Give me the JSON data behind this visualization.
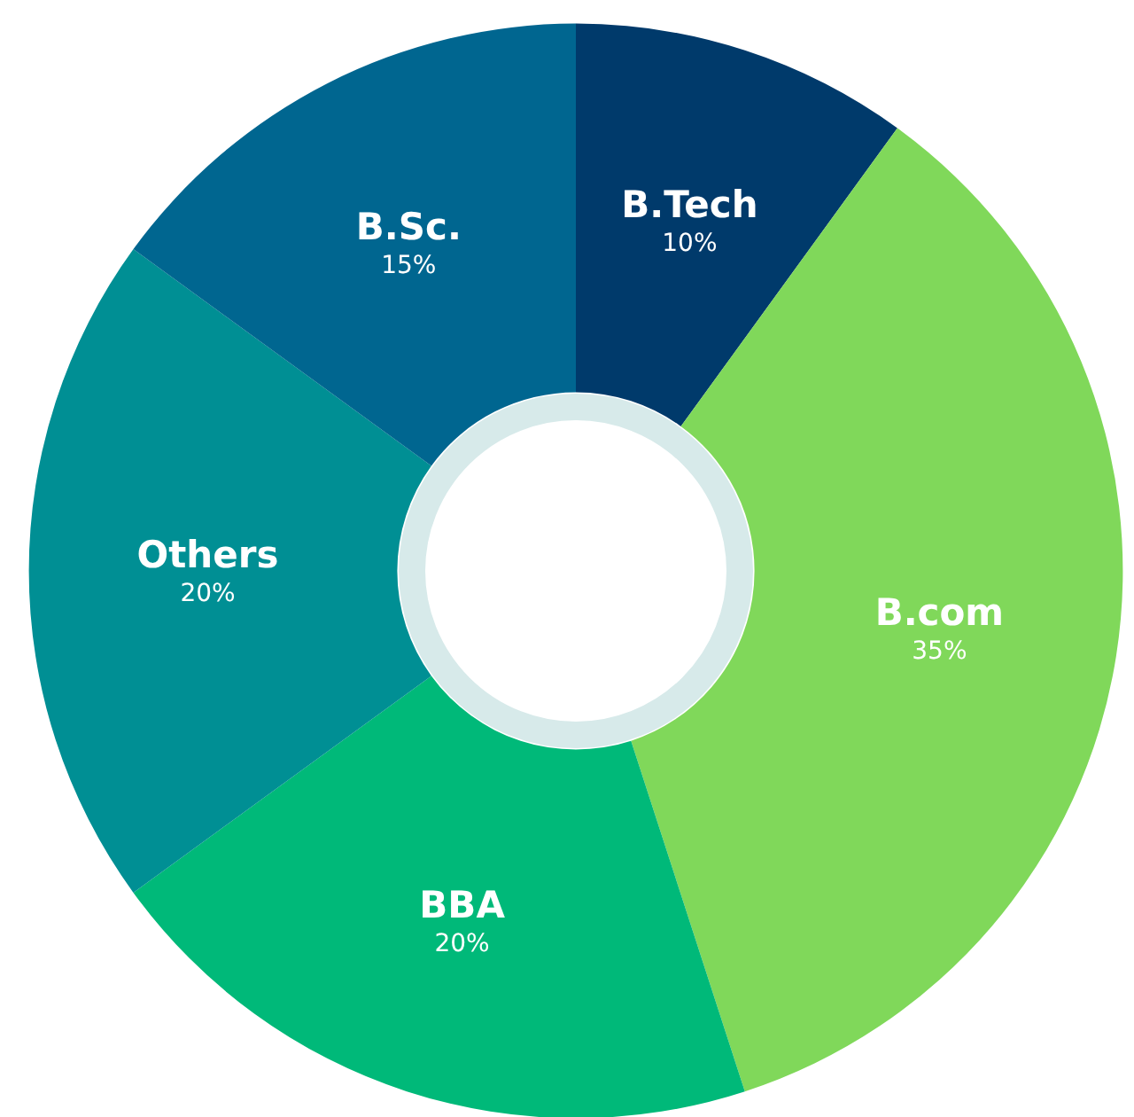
{
  "chart_data": {
    "type": "donut",
    "categories": [
      "B.Tech",
      "B.com",
      "BBA",
      "Others",
      "B.Sc."
    ],
    "values": [
      10,
      35,
      20,
      20,
      15
    ],
    "value_labels": [
      "10%",
      "35%",
      "20%",
      "20%",
      "15%"
    ],
    "colors": [
      "#003a6b",
      "#80d85a",
      "#00b979",
      "#008f94",
      "#006690"
    ],
    "legend": false
  }
}
